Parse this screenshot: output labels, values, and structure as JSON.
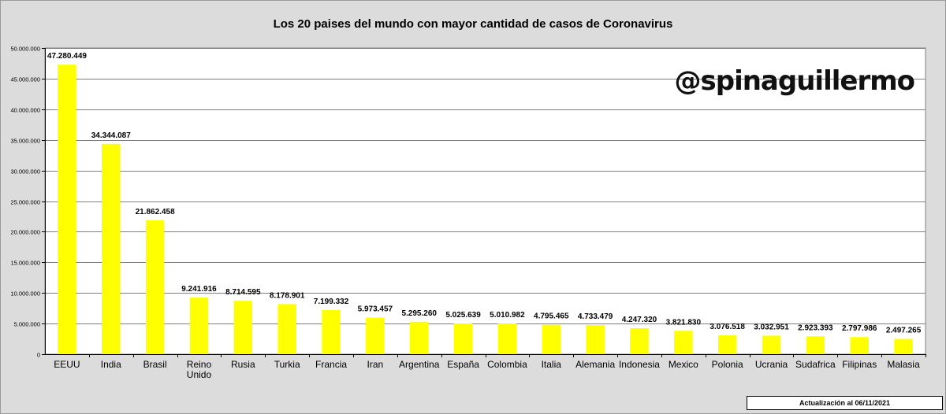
{
  "chart_data": {
    "type": "bar",
    "title": "Los 20 paises del mundo con mayor cantidad de casos de Coronavirus",
    "watermark": "@spinaguillermo",
    "update_note": "Actualización  al 06/11/2021",
    "categories": [
      [
        "EEUU"
      ],
      [
        "India"
      ],
      [
        "Brasil"
      ],
      [
        "Reino",
        "Unido"
      ],
      [
        "Rusia"
      ],
      [
        "Turkia"
      ],
      [
        "Francia"
      ],
      [
        "Iran"
      ],
      [
        "Argentina"
      ],
      [
        "España"
      ],
      [
        "Colombia"
      ],
      [
        "Italia"
      ],
      [
        "Alemania"
      ],
      [
        "Indonesia"
      ],
      [
        "Mexico"
      ],
      [
        "Polonia"
      ],
      [
        "Ucrania"
      ],
      [
        "Sudafrica"
      ],
      [
        "Filipinas"
      ],
      [
        "Malasia"
      ]
    ],
    "values": [
      47280449,
      34344087,
      21862458,
      9241916,
      8714595,
      8178901,
      7199332,
      5973457,
      5295260,
      5025639,
      5010982,
      4795465,
      4733479,
      4247320,
      3821830,
      3076518,
      3032951,
      2923393,
      2797986,
      2497265
    ],
    "value_labels": [
      "47.280.449",
      "34.344.087",
      "21.862.458",
      "9.241.916",
      "8.714.595",
      "8.178.901",
      "7.199.332",
      "5.973.457",
      "5.295.260",
      "5.025.639",
      "5.010.982",
      "4.795.465",
      "4.733.479",
      "4.247.320",
      "3.821.830",
      "3.076.518",
      "3.032.951",
      "2.923.393",
      "2.797.986",
      "2.497.265"
    ],
    "yticks": [
      0,
      5000000,
      10000000,
      15000000,
      20000000,
      25000000,
      30000000,
      35000000,
      40000000,
      45000000,
      50000000
    ],
    "ytick_labels": [
      "0",
      "5.000.000",
      "10.000.000",
      "15.000.000",
      "20.000.000",
      "25.000.000",
      "30.000.000",
      "35.000.000",
      "40.000.000",
      "45.000.000",
      "50.000.000"
    ],
    "ylim": [
      0,
      50000000
    ],
    "grid": true,
    "colors": {
      "bar": "#ffff00",
      "plot_bg": "#ffffff",
      "grid": "#808080"
    }
  }
}
